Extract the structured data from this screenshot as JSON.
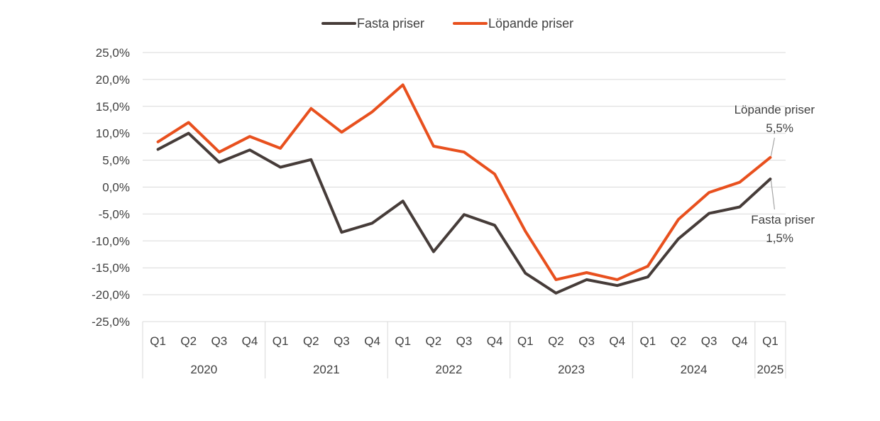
{
  "chart_data": {
    "type": "line",
    "legend": {
      "placement": "top-center"
    },
    "grid": true,
    "ylim": [
      -25,
      25
    ],
    "y_ticks": [
      "25,0%",
      "20,0%",
      "15,0%",
      "10,0%",
      "5,0%",
      "0,0%",
      "-5,0%",
      "-10,0%",
      "-15,0%",
      "-20,0%",
      "-25,0%"
    ],
    "quarters": [
      "Q1",
      "Q2",
      "Q3",
      "Q4",
      "Q1",
      "Q2",
      "Q3",
      "Q4",
      "Q1",
      "Q2",
      "Q3",
      "Q4",
      "Q1",
      "Q2",
      "Q3",
      "Q4",
      "Q1",
      "Q2",
      "Q3",
      "Q4",
      "Q1"
    ],
    "years": [
      {
        "label": "2020",
        "quarters": 4
      },
      {
        "label": "2021",
        "quarters": 4
      },
      {
        "label": "2022",
        "quarters": 4
      },
      {
        "label": "2023",
        "quarters": 4
      },
      {
        "label": "2024",
        "quarters": 4
      },
      {
        "label": "2025",
        "quarters": 1
      }
    ],
    "series": [
      {
        "name": "Fasta priser",
        "color": "#463c39",
        "values": [
          7.0,
          10.0,
          4.6,
          6.9,
          3.7,
          5.1,
          -8.4,
          -6.7,
          -2.6,
          -12.0,
          -5.1,
          -7.1,
          -16.0,
          -19.7,
          -17.2,
          -18.3,
          -16.7,
          -9.6,
          -4.9,
          -3.7,
          1.5
        ]
      },
      {
        "name": "Löpande priser",
        "color": "#e8501e",
        "values": [
          8.4,
          12.0,
          6.5,
          9.4,
          7.2,
          14.6,
          10.2,
          14.0,
          19.0,
          7.6,
          6.5,
          2.4,
          -8.2,
          -17.2,
          -15.9,
          -17.2,
          -14.7,
          -6.0,
          -1.0,
          0.9,
          5.5
        ]
      }
    ],
    "annotations": [
      {
        "series": "Löpande priser",
        "line1": "Löpande priser",
        "line2": "5,5%"
      },
      {
        "series": "Fasta priser",
        "line1": "Fasta priser",
        "line2": "1,5%"
      }
    ]
  }
}
